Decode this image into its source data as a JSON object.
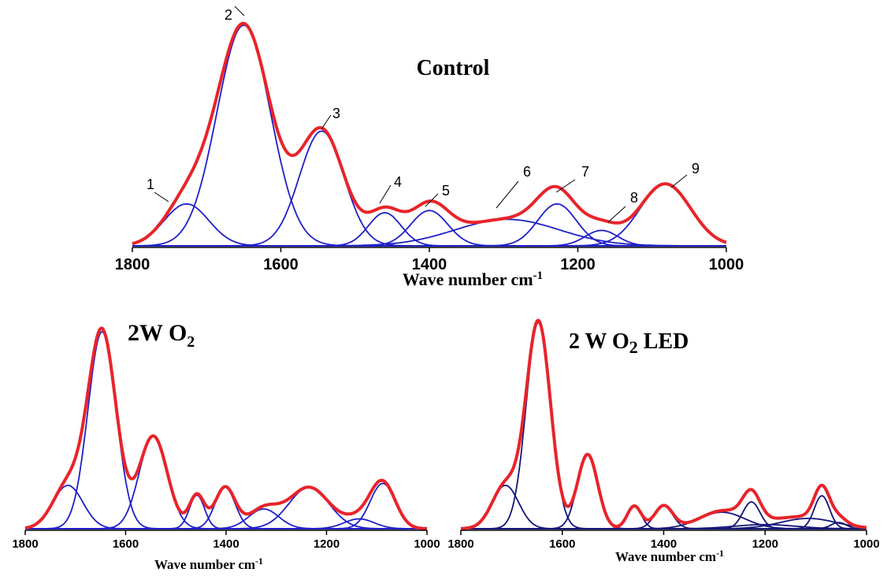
{
  "chart_data": [
    {
      "type": "line",
      "title": "Control",
      "xlabel": "Wave number cm",
      "xlabel_sup": "-1",
      "x_ticks": [
        1800,
        1600,
        1400,
        1200,
        1000
      ],
      "xlim": [
        1800,
        1000
      ],
      "x_reversed": true,
      "components": [
        {
          "center": 1727,
          "height": 0.19,
          "width": 30
        },
        {
          "center": 1650,
          "height": 1.0,
          "width": 36
        },
        {
          "center": 1545,
          "height": 0.52,
          "width": 30
        },
        {
          "center": 1460,
          "height": 0.15,
          "width": 22
        },
        {
          "center": 1400,
          "height": 0.16,
          "width": 25
        },
        {
          "center": 1295,
          "height": 0.12,
          "width": 70
        },
        {
          "center": 1228,
          "height": 0.19,
          "width": 26
        },
        {
          "center": 1168,
          "height": 0.07,
          "width": 22
        },
        {
          "center": 1082,
          "height": 0.28,
          "width": 34
        }
      ],
      "annotations": [
        "1",
        "2",
        "3",
        "4",
        "5",
        "6",
        "7",
        "8",
        "9"
      ]
    },
    {
      "type": "line",
      "title_main": "2W O",
      "title_sub": "2",
      "xlabel": "Wave number cm",
      "xlabel_sup": "-1",
      "x_ticks": [
        1800,
        1600,
        1400,
        1200,
        1000
      ],
      "xlim": [
        1800,
        1000
      ],
      "x_reversed": true,
      "components": [
        {
          "center": 1715,
          "height": 0.22,
          "width": 30
        },
        {
          "center": 1647,
          "height": 1.0,
          "width": 28
        },
        {
          "center": 1545,
          "height": 0.47,
          "width": 28
        },
        {
          "center": 1458,
          "height": 0.17,
          "width": 15
        },
        {
          "center": 1402,
          "height": 0.21,
          "width": 20
        },
        {
          "center": 1325,
          "height": 0.1,
          "width": 30
        },
        {
          "center": 1235,
          "height": 0.21,
          "width": 40
        },
        {
          "center": 1088,
          "height": 0.23,
          "width": 25
        },
        {
          "center": 1135,
          "height": 0.05,
          "width": 30
        }
      ]
    },
    {
      "type": "line",
      "title_main": "2 W O",
      "title_sub": "2",
      "title_suffix": " LED",
      "xlabel": "Wave number cm",
      "xlabel_sup": "-1",
      "x_ticks": [
        1800,
        1600,
        1400,
        1200,
        1000
      ],
      "xlim": [
        1800,
        1000
      ],
      "x_reversed": true,
      "components": [
        {
          "center": 1712,
          "height": 0.21,
          "width": 26
        },
        {
          "center": 1647,
          "height": 1.0,
          "width": 24
        },
        {
          "center": 1550,
          "height": 0.36,
          "width": 20
        },
        {
          "center": 1458,
          "height": 0.11,
          "width": 14
        },
        {
          "center": 1400,
          "height": 0.11,
          "width": 18
        },
        {
          "center": 1285,
          "height": 0.08,
          "width": 45
        },
        {
          "center": 1227,
          "height": 0.13,
          "width": 17
        },
        {
          "center": 1200,
          "height": 0.02,
          "width": 60
        },
        {
          "center": 1115,
          "height": 0.05,
          "width": 55
        },
        {
          "center": 1088,
          "height": 0.16,
          "width": 15
        },
        {
          "center": 1055,
          "height": 0.03,
          "width": 15
        }
      ]
    }
  ],
  "colors": {
    "envelope": "#e8242a",
    "component": "#1f1fc8",
    "component_dark": "#14147a",
    "axis": "#000000"
  }
}
